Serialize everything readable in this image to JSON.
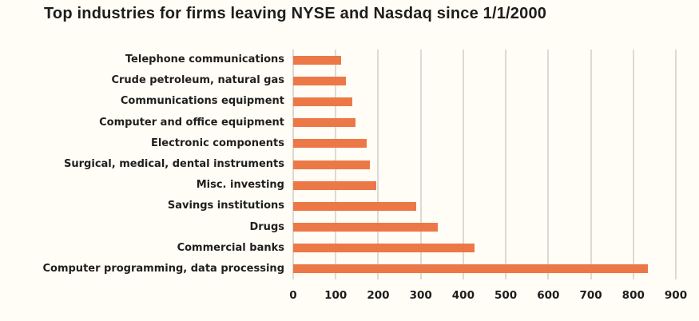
{
  "title": "Top industries for firms leaving NYSE and Nasdaq since 1/1/2000",
  "chart_data": {
    "type": "bar",
    "orientation": "horizontal",
    "title": "Top industries for firms leaving NYSE and Nasdaq since 1/1/2000",
    "categories": [
      "Telephone communications",
      "Crude petroleum, natural gas",
      "Communications equipment",
      "Computer and office equipment",
      "Electronic components",
      "Surgical, medical, dental instruments",
      "Misc. investing",
      "Savings institutions",
      "Drugs",
      "Commercial banks",
      "Computer programming, data processing"
    ],
    "values": [
      112,
      124,
      139,
      146,
      172,
      181,
      195,
      290,
      340,
      426,
      835
    ],
    "xlabel": "",
    "ylabel": "",
    "xlim": [
      0,
      900
    ],
    "xticks": [
      0,
      100,
      200,
      300,
      400,
      500,
      600,
      700,
      800,
      900
    ],
    "grid": "vertical-gridlines-on",
    "legend": "none",
    "bar_color": "#ED7847",
    "gridline_color": "#dcdad2",
    "text_color": "#1d1d1b",
    "background_color": "#fffdf6"
  }
}
